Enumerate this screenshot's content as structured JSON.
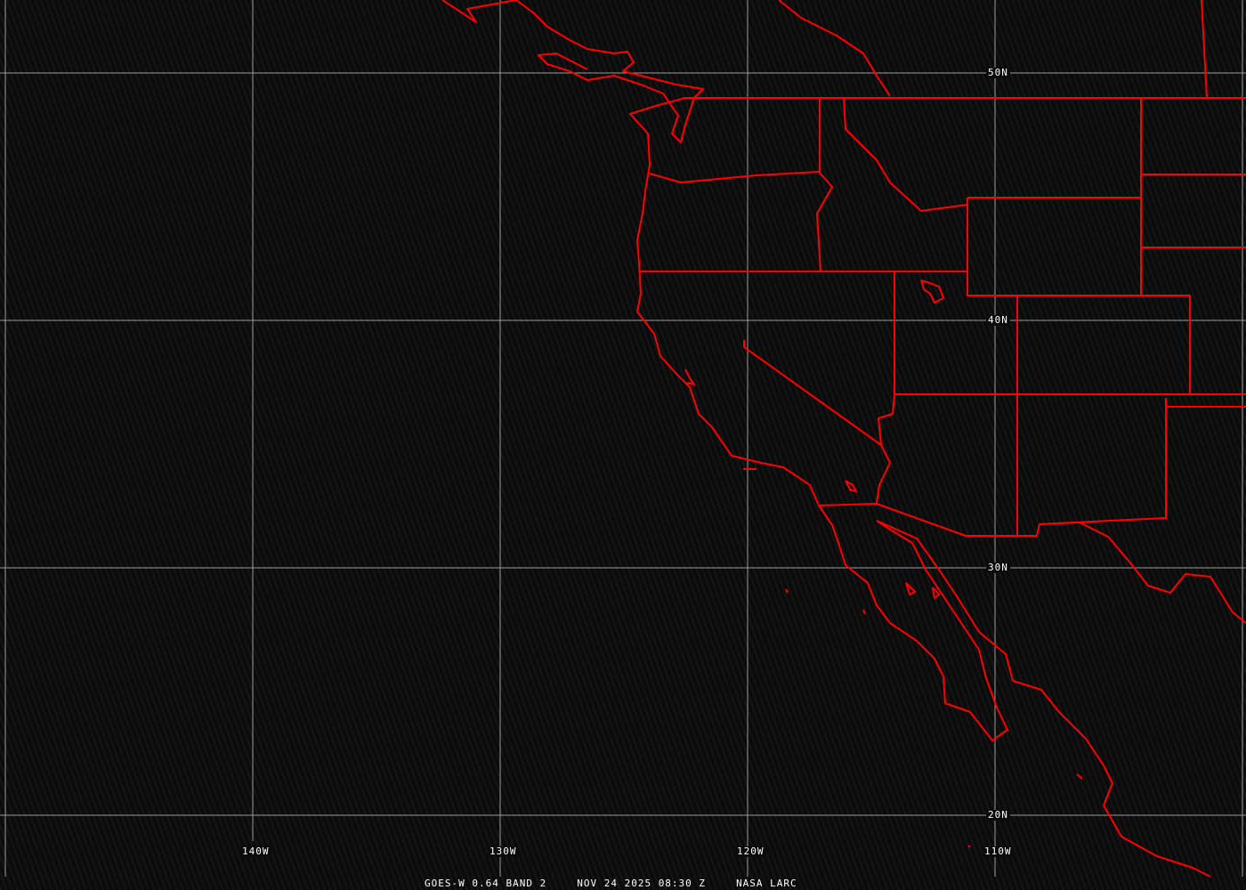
{
  "caption": {
    "product": "GOES-W 0.64 BAND 2",
    "datetime": "NOV 24 2025 08:30 Z",
    "source": "NASA LARC"
  },
  "grid": {
    "longitude_labels": [
      "140W",
      "130W",
      "120W",
      "110W"
    ],
    "latitude_labels": [
      "50N",
      "40N",
      "30N",
      "20N"
    ]
  },
  "colors": {
    "boundaries": "#ff0000",
    "grid": "#a0a0a0",
    "background": "#0b0b0b",
    "text": "#ffffff"
  }
}
